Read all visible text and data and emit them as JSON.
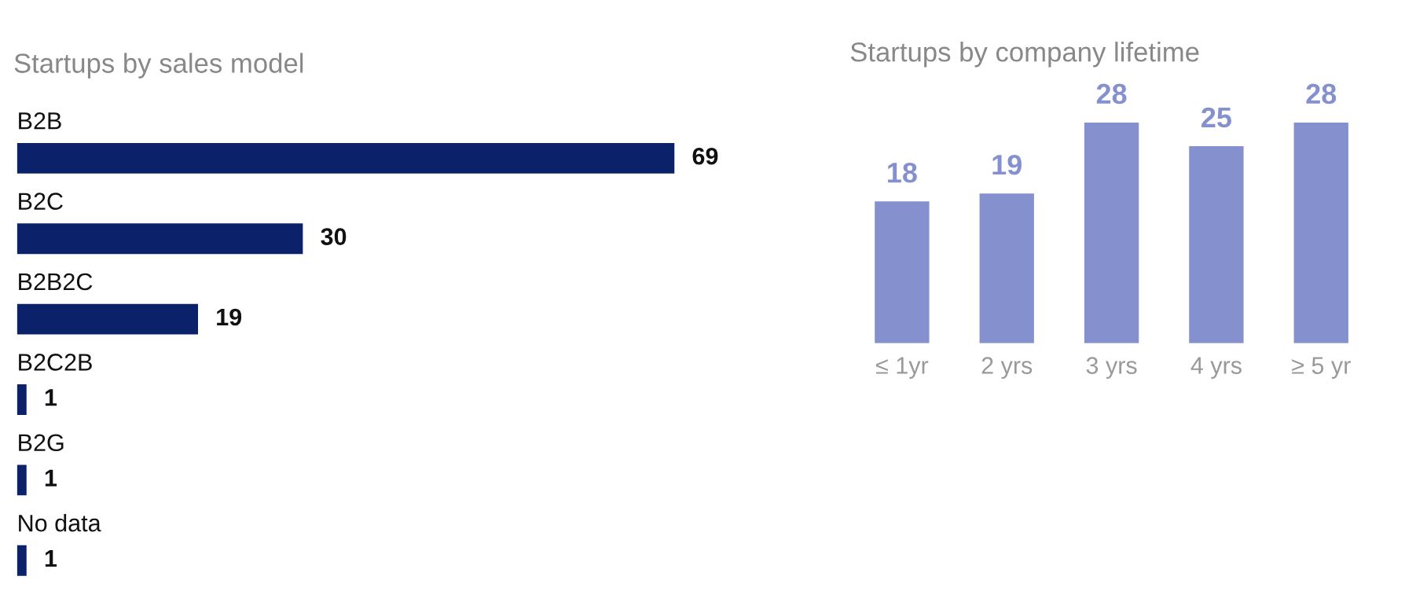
{
  "chart_data": [
    {
      "type": "bar",
      "orientation": "horizontal",
      "title": "Startups by sales model",
      "categories": [
        "B2B",
        "B2C",
        "B2B2C",
        "B2C2B",
        "B2G",
        "No data"
      ],
      "values": [
        69,
        30,
        19,
        1,
        1,
        1
      ],
      "color": "#0b226b",
      "data_labels": true,
      "grid": false,
      "legend": false
    },
    {
      "type": "bar",
      "title": "Startups by company lifetime",
      "categories": [
        "≤ 1yr",
        "2 yrs",
        "3 yrs",
        "4 yrs",
        "≥ 5 yr"
      ],
      "values": [
        18,
        19,
        28,
        25,
        28
      ],
      "color": "#8491ce",
      "data_labels": true,
      "grid": false,
      "legend": false
    }
  ]
}
